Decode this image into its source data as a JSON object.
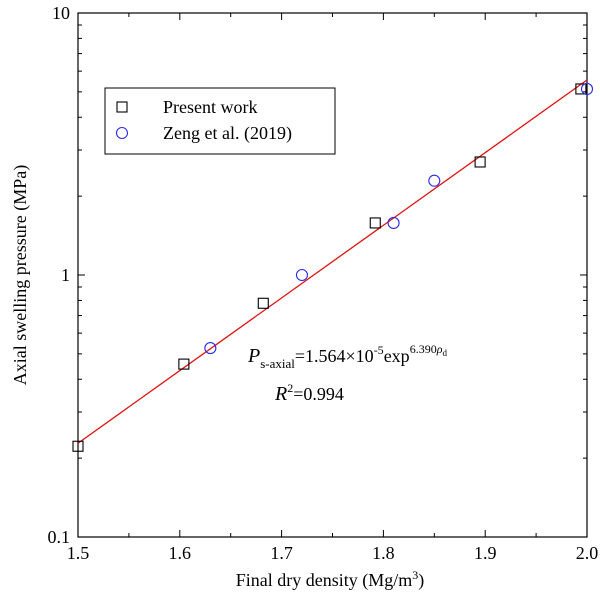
{
  "chart_data": {
    "type": "scatter",
    "xlabel": {
      "text": "Final dry density (Mg/m",
      "sup": "3",
      "end": ")"
    },
    "ylabel": "Axial swelling pressure (MPa)",
    "xlim": [
      1.5,
      2.0
    ],
    "ylim": [
      0.1,
      10
    ],
    "log_y": true,
    "xticks": [
      1.5,
      1.6,
      1.7,
      1.8,
      1.9,
      {
        "value": 2.0,
        "label": "2.0"
      }
    ],
    "yticks": [
      0.1,
      1,
      10
    ],
    "legend": "upper left",
    "series": [
      {
        "name": "Present work",
        "color": "#000000",
        "marker": "square",
        "x": [
          1.5,
          1.604,
          1.682,
          1.792,
          1.895,
          1.994
        ],
        "values": [
          0.222,
          0.457,
          0.78,
          1.58,
          2.7,
          5.13
        ]
      },
      {
        "name": "Zeng et al. (2019)",
        "color": "#2a2ae6",
        "marker": "circle",
        "x": [
          1.63,
          1.72,
          1.81,
          1.85,
          2.0
        ],
        "values": [
          0.526,
          1.0,
          1.58,
          2.29,
          5.13
        ]
      }
    ],
    "fit_line": {
      "color": "#e01010",
      "x": [
        1.5,
        2.0
      ],
      "values": [
        0.228,
        5.55
      ]
    },
    "equation": {
      "p": "P",
      "p_sub": "s-axial",
      "mid": "=1.564×10",
      "exp10": "-5",
      "exp": "exp",
      "coef": "6.390",
      "rho": "ρ",
      "rho_sub": "d"
    },
    "r2": {
      "r": "R",
      "sup": "2",
      "value": "=0.994"
    }
  }
}
